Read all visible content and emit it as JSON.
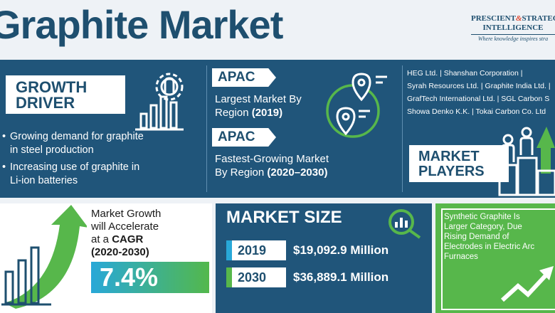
{
  "title": "Graphite Market",
  "logo": {
    "line1_a": "PRESCIENT",
    "line1_amp": "&",
    "line1_b": "STRATEG",
    "line2": "INTELLIGENCE",
    "tagline": "Where knowledge inspires stra"
  },
  "growth_driver": {
    "label_line1": "GROWTH",
    "label_line2": "DRIVER",
    "bullets": [
      {
        "line1": "Growing demand for graphite",
        "line2": "in steel production"
      },
      {
        "line1": "Increasing use of graphite in",
        "line2": "Li-ion batteries"
      }
    ]
  },
  "regions": {
    "largest": {
      "tag": "APAC",
      "line1": "Largest Market By",
      "line2_a": "Region ",
      "line2_b": "(2019)"
    },
    "fastest": {
      "tag": "APAC",
      "line1": "Fastest-Growing Market",
      "line2_a": "By Region ",
      "line2_b": "(2020–2030)"
    }
  },
  "market_players": {
    "label_line1": "MARKET",
    "label_line2": "PLAYERS",
    "lines": [
      "HEG Ltd.  |  Shanshan Corporation  |",
      "Syrah Resources Ltd.  |  Graphite India Ltd.  |",
      "GrafTech International Ltd.  |  SGL Carbon S",
      "Showa Denko K.K.  |  Tokai Carbon Co. Ltd"
    ]
  },
  "growth": {
    "line1": "Market Growth",
    "line2": "will Accelerate",
    "line3_a": "at a ",
    "line3_b": "CAGR",
    "line4": "(2020-2030)",
    "cagr": "7.4%"
  },
  "market_size": {
    "label": "MARKET SIZE",
    "rows": [
      {
        "year": "2019",
        "value": "$19,092.9 Million"
      },
      {
        "year": "2030",
        "value": "$36,889.1 Million"
      }
    ]
  },
  "synthetic": {
    "lines": [
      "Synthetic Graphite Is",
      "Larger Category, Due",
      "Rising Demand of",
      "Electrodes in Electric Arc",
      "Furnaces"
    ]
  },
  "colors": {
    "navy": "#1e4f6f",
    "band": "#20557a",
    "green": "#57b74b",
    "cyan": "#28a8d8"
  }
}
